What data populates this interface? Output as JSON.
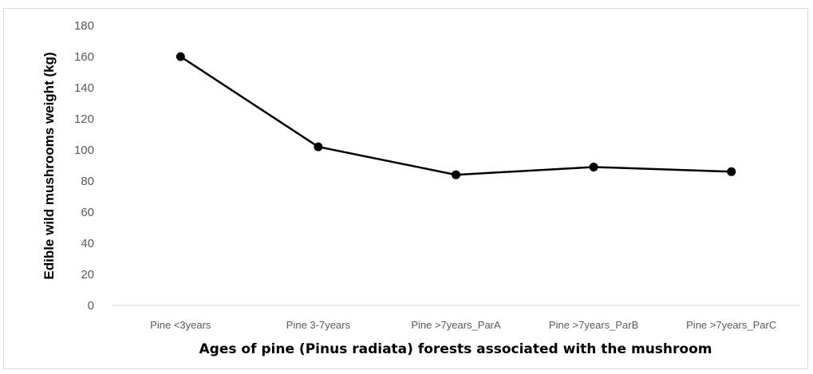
{
  "chart_data": {
    "type": "line",
    "categories": [
      "Pine <3years",
      "Pine 3-7years",
      "Pine >7years_ParA",
      "Pine >7years_ParB",
      "Pine >7years_ParC"
    ],
    "series": [
      {
        "values": [
          160,
          102,
          84,
          89,
          86
        ]
      }
    ],
    "xlabel": "Ages of pine (Pinus radiata) forests associated with the mushroom",
    "ylabel": "Edible wild mushrooms weight (kg)",
    "ylim": [
      0,
      180
    ],
    "yticks": [
      0,
      20,
      40,
      60,
      80,
      100,
      120,
      140,
      160,
      180
    ],
    "grid": false,
    "legend": "none",
    "colors": {
      "line": "#000000",
      "marker": "#000000",
      "axis": "#d9d9d9",
      "tick_text": "#595959"
    }
  }
}
